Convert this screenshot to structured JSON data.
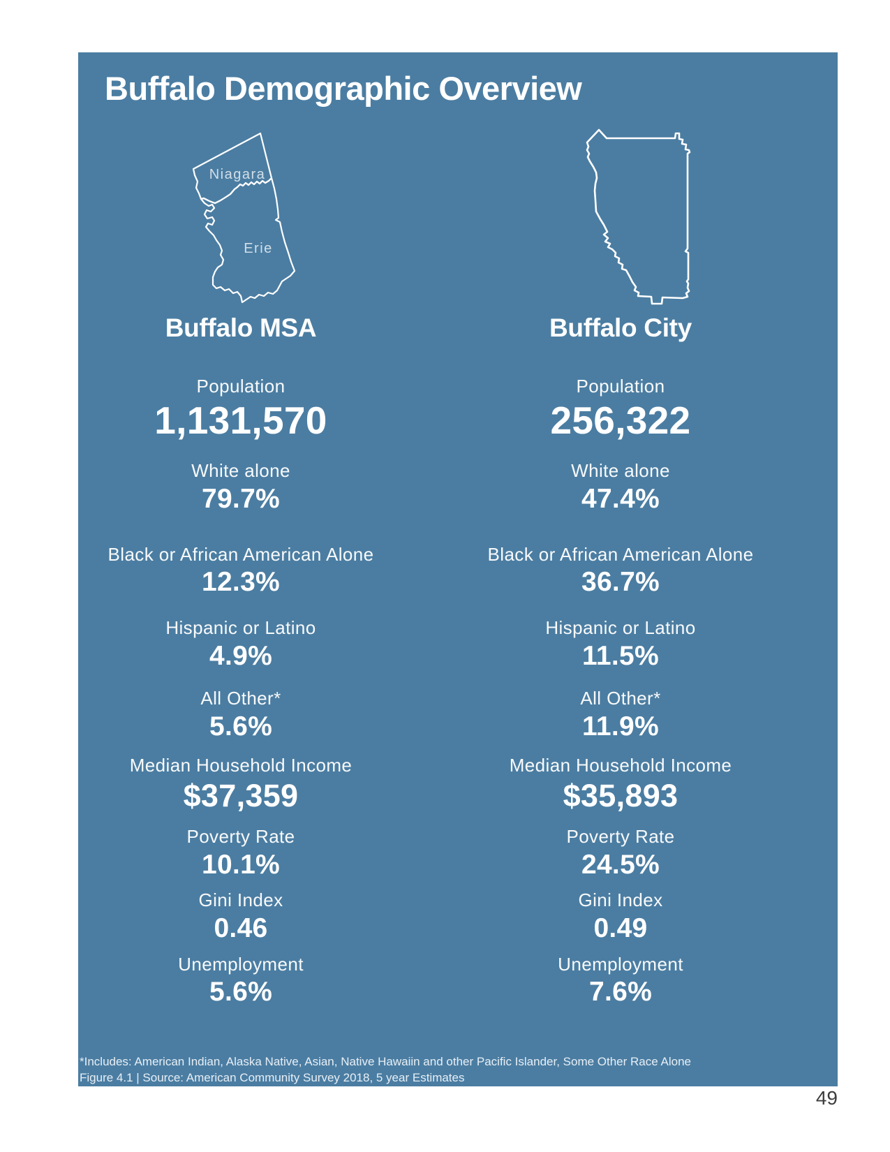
{
  "title": "Buffalo Demographic Overview",
  "page_number": "49",
  "theme": {
    "panel_bg": "#4b7da2",
    "text_color": "#ffffff",
    "page_bg": "#ffffff",
    "page_number_color": "#3d3d3d"
  },
  "maps": {
    "msa": {
      "niagara_label": "Niagara",
      "erie_label": "Erie"
    }
  },
  "columns": [
    {
      "title": "Buffalo MSA",
      "stats": [
        {
          "label": "Population",
          "value": "1,131,570"
        },
        {
          "label": "White alone",
          "value": "79.7%"
        },
        {
          "label": "Black or African American Alone",
          "value": "12.3%"
        },
        {
          "label": "Hispanic or Latino",
          "value": "4.9%"
        },
        {
          "label": "All Other*",
          "value": "5.6%"
        },
        {
          "label": "Median Household Income",
          "value": "$37,359"
        },
        {
          "label": "Poverty Rate",
          "value": "10.1%"
        },
        {
          "label": "Gini Index",
          "value": "0.46"
        },
        {
          "label": "Unemployment",
          "value": "5.6%"
        }
      ]
    },
    {
      "title": "Buffalo City",
      "stats": [
        {
          "label": "Population",
          "value": "256,322"
        },
        {
          "label": "White alone",
          "value": "47.4%"
        },
        {
          "label": "Black or African American Alone",
          "value": "36.7%"
        },
        {
          "label": "Hispanic or Latino",
          "value": "11.5%"
        },
        {
          "label": "All Other*",
          "value": "11.9%"
        },
        {
          "label": "Median Household Income",
          "value": "$35,893"
        },
        {
          "label": "Poverty Rate",
          "value": "24.5%"
        },
        {
          "label": "Gini Index",
          "value": "0.49"
        },
        {
          "label": "Unemployment",
          "value": "7.6%"
        }
      ]
    }
  ],
  "footnotes": {
    "line1": "*Includes: American Indian, Alaska Native, Asian, Native Hawaiin and other Pacific Islander, Some Other Race Alone",
    "line2": "Figure 4.1 | Source: American Community Survey 2018, 5 year Estimates"
  }
}
